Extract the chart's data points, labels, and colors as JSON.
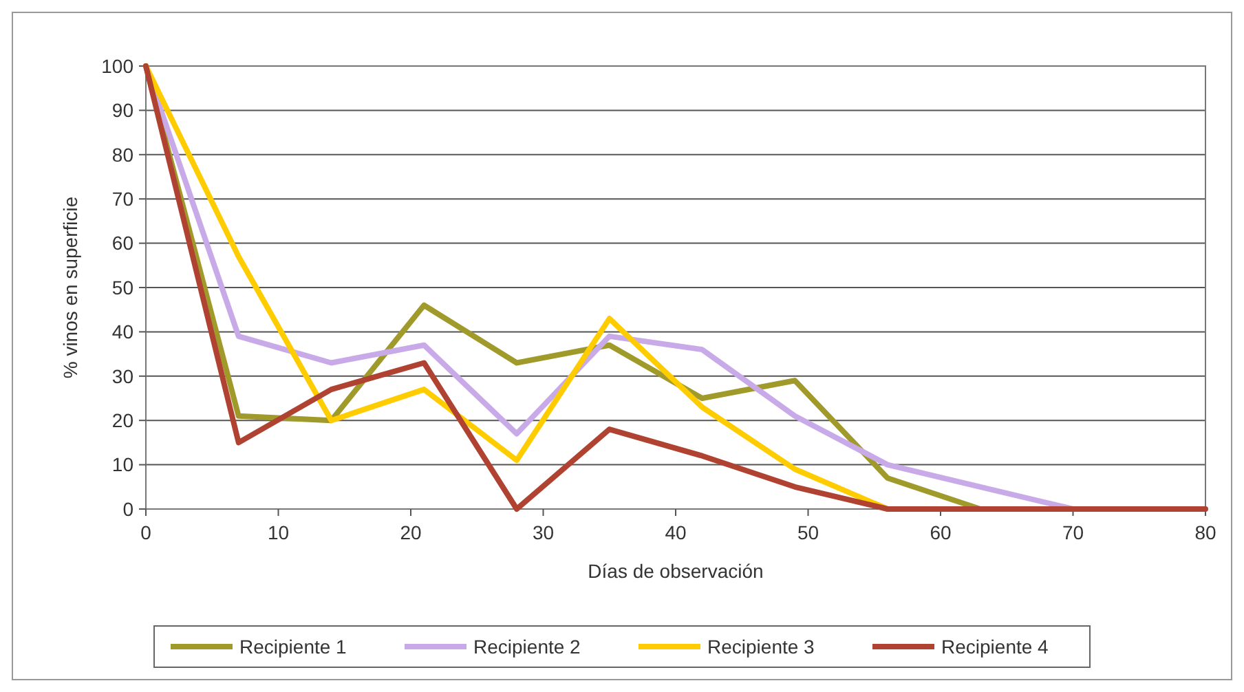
{
  "chart_data": {
    "type": "line",
    "xlabel": "Días de observación",
    "ylabel": "% vinos en superficie",
    "x": [
      0,
      7,
      14,
      21,
      28,
      35,
      42,
      49,
      56,
      63,
      70,
      77,
      80
    ],
    "series": [
      {
        "name": "Recipiente 1",
        "color": "#a09a2a",
        "values": [
          100,
          21,
          20,
          46,
          33,
          37,
          25,
          29,
          7,
          0,
          null,
          null,
          null
        ]
      },
      {
        "name": "Recipiente 2",
        "color": "#c8aae8",
        "values": [
          100,
          39,
          33,
          37,
          17,
          39,
          36,
          21,
          10,
          5,
          0,
          null,
          null
        ]
      },
      {
        "name": "Recipiente 3",
        "color": "#ffcc00",
        "values": [
          100,
          57,
          20,
          27,
          11,
          43,
          23,
          9,
          0,
          null,
          null,
          null,
          null
        ]
      },
      {
        "name": "Recipiente 4",
        "color": "#b04232",
        "values": [
          100,
          15,
          27,
          33,
          0,
          18,
          12,
          5,
          0,
          0,
          0,
          0,
          0
        ]
      }
    ],
    "xlim": [
      0,
      80
    ],
    "xticks": [
      0,
      10,
      20,
      30,
      40,
      50,
      60,
      70,
      80
    ],
    "ylim": [
      0,
      100
    ],
    "yticks": [
      0,
      10,
      20,
      30,
      40,
      50,
      60,
      70,
      80,
      90,
      100
    ],
    "grid": "y",
    "legend": "bottom",
    "marker": "none",
    "line_style": "solid"
  }
}
